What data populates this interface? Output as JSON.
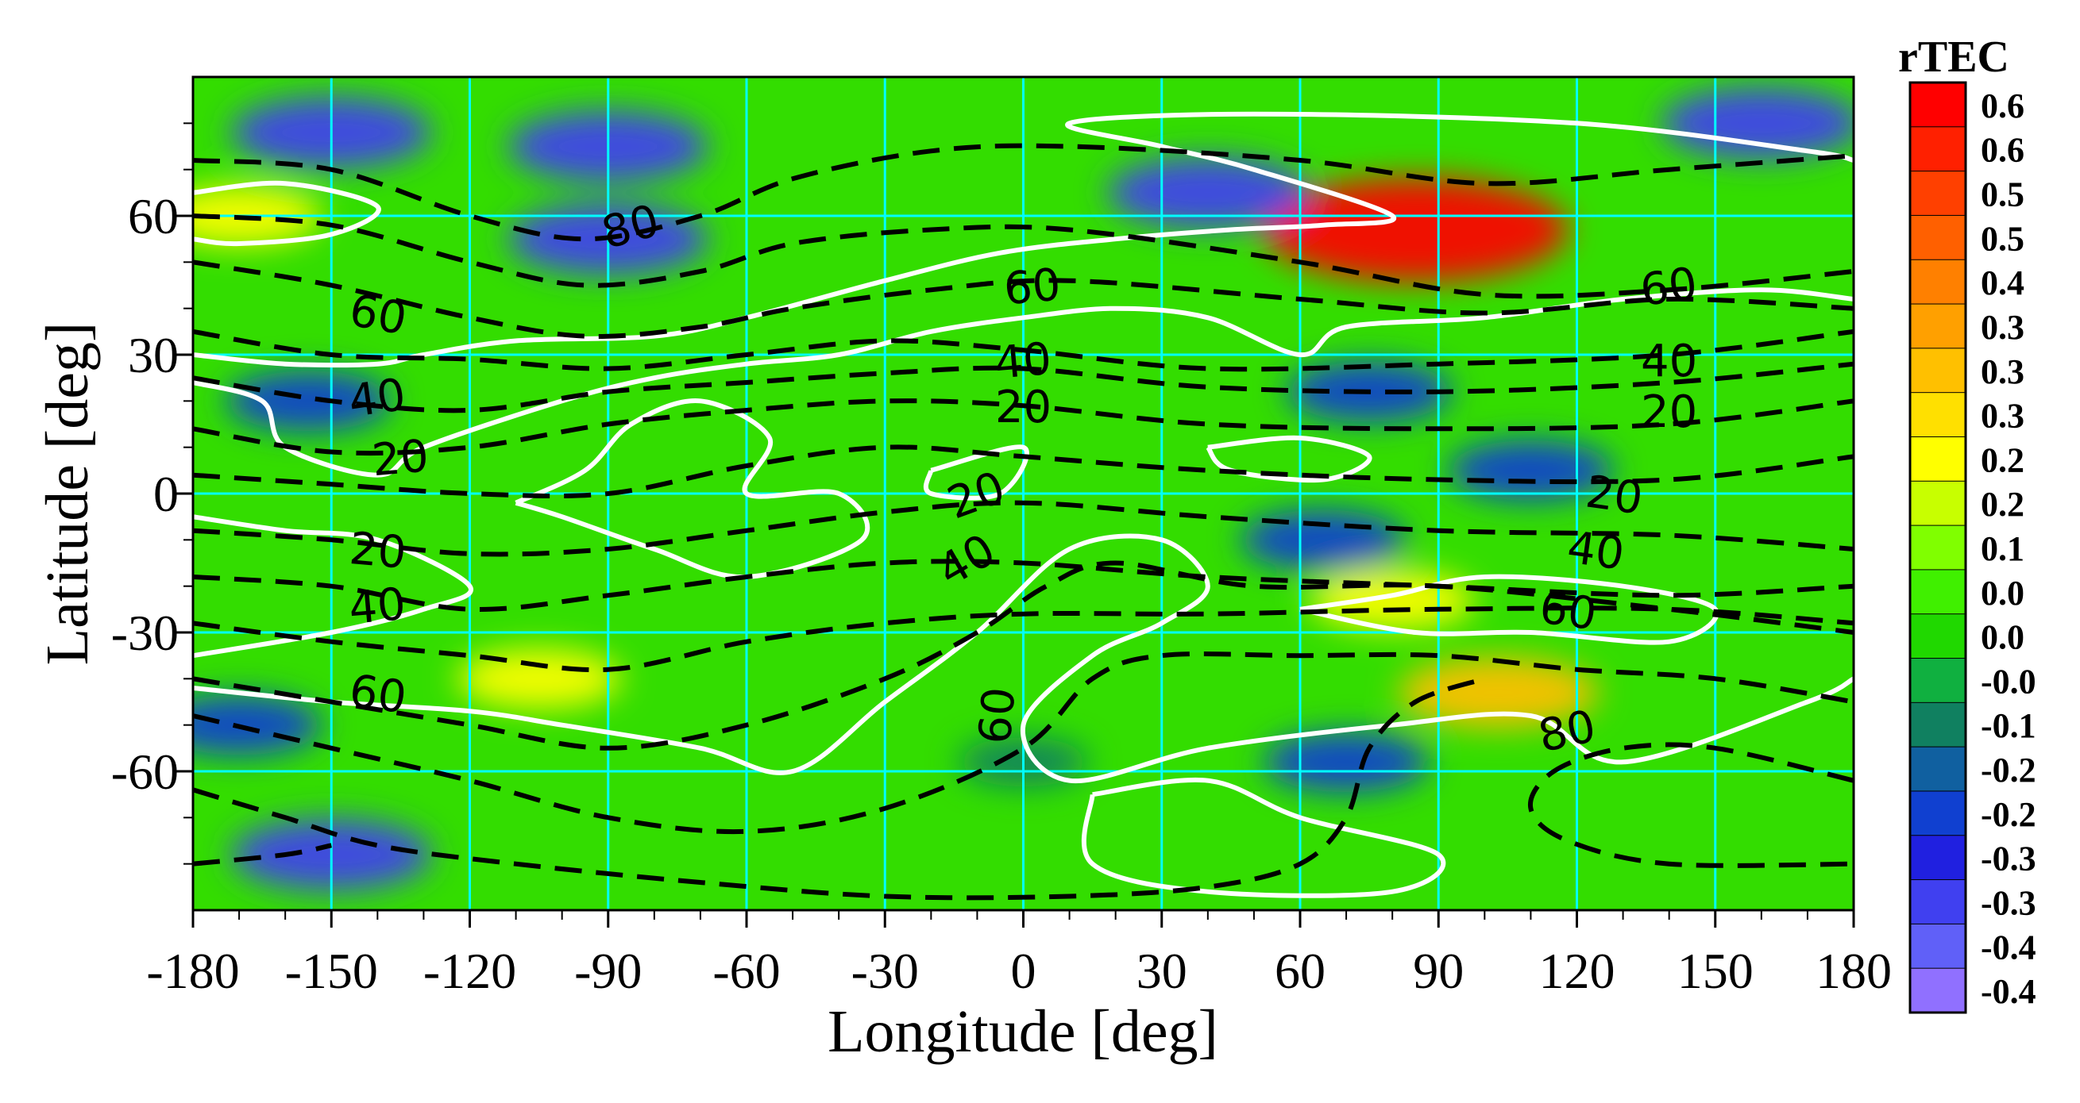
{
  "chart_data": {
    "type": "heatmap",
    "xlabel": "Longitude [deg]",
    "ylabel": "Latitude [deg]",
    "xlim": [
      -180,
      180
    ],
    "ylim": [
      -90,
      90
    ],
    "x_ticks": [
      "-180",
      "-150",
      "-120",
      "-90",
      "-60",
      "-30",
      "0",
      "30",
      "60",
      "90",
      "120",
      "150",
      "180"
    ],
    "y_ticks": [
      "60",
      "30",
      "0",
      "-30",
      "-60"
    ],
    "x_tick_values": [
      -180,
      -150,
      -120,
      -90,
      -60,
      -30,
      0,
      30,
      60,
      90,
      120,
      150,
      180
    ],
    "y_tick_values": [
      60,
      30,
      0,
      -30,
      -60
    ],
    "grid": true,
    "grid_color": "#00ffff",
    "colorbar": {
      "title": "rTEC",
      "labels": [
        "0.6",
        "0.6",
        "0.5",
        "0.5",
        "0.4",
        "0.3",
        "0.3",
        "0.3",
        "0.2",
        "0.2",
        "0.1",
        "0.0",
        "0.0",
        "-0.0",
        "-0.1",
        "-0.2",
        "-0.2",
        "-0.3",
        "-0.3",
        "-0.4",
        "-0.4"
      ],
      "colors": [
        "#ff0000",
        "#ff2000",
        "#ff4000",
        "#ff6000",
        "#ff8000",
        "#ffa000",
        "#ffc000",
        "#ffe000",
        "#ffff00",
        "#c8ff00",
        "#80ff00",
        "#40f000",
        "#20d800",
        "#10b040",
        "#108060",
        "#1060a0",
        "#1040d0",
        "#2020e0",
        "#4040f0",
        "#6060f8",
        "#9070ff"
      ]
    },
    "background_color": "#33dd00",
    "anomaly_regions": [
      {
        "lon": -170,
        "lat": 60,
        "value": 0.2
      },
      {
        "lon": 85,
        "lat": 57,
        "value": 0.6
      },
      {
        "lon": 103,
        "lat": -43,
        "value": 0.3
      },
      {
        "lon": 80,
        "lat": -23,
        "value": 0.2
      },
      {
        "lon": -105,
        "lat": -40,
        "value": 0.2
      },
      {
        "lon": -150,
        "lat": 78,
        "value": -0.3
      },
      {
        "lon": -90,
        "lat": 75,
        "value": -0.3
      },
      {
        "lon": -90,
        "lat": 55,
        "value": -0.3
      },
      {
        "lon": 40,
        "lat": 65,
        "value": -0.3
      },
      {
        "lon": 160,
        "lat": 80,
        "value": -0.3
      },
      {
        "lon": -150,
        "lat": -78,
        "value": -0.3
      },
      {
        "lon": 110,
        "lat": 5,
        "value": -0.2
      },
      {
        "lon": 65,
        "lat": -10,
        "value": -0.2
      },
      {
        "lon": -155,
        "lat": 20,
        "value": -0.2
      },
      {
        "lon": 75,
        "lat": 22,
        "value": -0.2
      },
      {
        "lon": 70,
        "lat": -58,
        "value": -0.2
      },
      {
        "lon": 0,
        "lat": -58,
        "value": -0.1
      },
      {
        "lon": -170,
        "lat": -50,
        "value": -0.2
      }
    ],
    "contour_labels": [
      {
        "text": "80",
        "lon": -85,
        "lat": 57,
        "angle": -15
      },
      {
        "text": "60",
        "lon": -140,
        "lat": 38,
        "angle": 10
      },
      {
        "text": "40",
        "lon": -140,
        "lat": 20,
        "angle": -8
      },
      {
        "text": "20",
        "lon": -135,
        "lat": 7,
        "angle": -5
      },
      {
        "text": "20",
        "lon": -140,
        "lat": -13,
        "angle": 5
      },
      {
        "text": "40",
        "lon": -140,
        "lat": -25,
        "angle": -5
      },
      {
        "text": "60",
        "lon": -140,
        "lat": -44,
        "angle": 8
      },
      {
        "text": "60",
        "lon": 2,
        "lat": 44,
        "angle": -5
      },
      {
        "text": "40",
        "lon": 0,
        "lat": 28,
        "angle": -5
      },
      {
        "text": "20",
        "lon": 0,
        "lat": 18,
        "angle": 0
      },
      {
        "text": "20",
        "lon": -10,
        "lat": -1,
        "angle": -20
      },
      {
        "text": "40",
        "lon": -12,
        "lat": -15,
        "angle": -30
      },
      {
        "text": "60",
        "lon": -5,
        "lat": -48,
        "angle": -85
      },
      {
        "text": "60",
        "lon": 140,
        "lat": 44,
        "angle": -8
      },
      {
        "text": "40",
        "lon": 140,
        "lat": 28,
        "angle": 0
      },
      {
        "text": "20",
        "lon": 140,
        "lat": 17,
        "angle": 0
      },
      {
        "text": "20",
        "lon": 128,
        "lat": -1,
        "angle": 8
      },
      {
        "text": "40",
        "lon": 124,
        "lat": -13,
        "angle": 8
      },
      {
        "text": "60",
        "lon": 118,
        "lat": -26,
        "angle": 8
      },
      {
        "text": "80",
        "lon": 118,
        "lat": -52,
        "angle": -12
      }
    ],
    "dashed_contours": [
      [
        [
          -180,
          72
        ],
        [
          -150,
          70
        ],
        [
          -120,
          60
        ],
        [
          -95,
          55
        ],
        [
          -70,
          60
        ],
        [
          -50,
          68
        ],
        [
          -20,
          74
        ],
        [
          10,
          75
        ],
        [
          60,
          72
        ],
        [
          100,
          67
        ],
        [
          140,
          70
        ],
        [
          180,
          73
        ]
      ],
      [
        [
          -180,
          60
        ],
        [
          -150,
          58
        ],
        [
          -120,
          50
        ],
        [
          -95,
          45
        ],
        [
          -70,
          48
        ],
        [
          -50,
          54
        ],
        [
          -20,
          57
        ],
        [
          10,
          57
        ],
        [
          60,
          50
        ],
        [
          100,
          43
        ],
        [
          140,
          44
        ],
        [
          180,
          48
        ]
      ],
      [
        [
          -180,
          50
        ],
        [
          -150,
          45
        ],
        [
          -120,
          38
        ],
        [
          -95,
          34
        ],
        [
          -70,
          36
        ],
        [
          -50,
          40
        ],
        [
          -20,
          44
        ],
        [
          10,
          46
        ],
        [
          60,
          42
        ],
        [
          100,
          39
        ],
        [
          140,
          42
        ],
        [
          180,
          40
        ]
      ],
      [
        [
          -180,
          35
        ],
        [
          -150,
          30
        ],
        [
          -120,
          29
        ],
        [
          -90,
          27
        ],
        [
          -60,
          30
        ],
        [
          -30,
          33
        ],
        [
          0,
          31
        ],
        [
          40,
          27
        ],
        [
          90,
          28
        ],
        [
          140,
          30
        ],
        [
          180,
          35
        ]
      ],
      [
        [
          -180,
          25
        ],
        [
          -150,
          20
        ],
        [
          -120,
          18
        ],
        [
          -90,
          22
        ],
        [
          -60,
          24
        ],
        [
          -30,
          26
        ],
        [
          0,
          27
        ],
        [
          40,
          23
        ],
        [
          90,
          22
        ],
        [
          140,
          24
        ],
        [
          180,
          28
        ]
      ],
      [
        [
          -180,
          14
        ],
        [
          -150,
          9
        ],
        [
          -120,
          10
        ],
        [
          -90,
          15
        ],
        [
          -60,
          18
        ],
        [
          -30,
          20
        ],
        [
          0,
          19
        ],
        [
          40,
          15
        ],
        [
          90,
          14
        ],
        [
          140,
          15
        ],
        [
          180,
          20
        ]
      ],
      [
        [
          -180,
          4
        ],
        [
          -150,
          2
        ],
        [
          -120,
          0
        ],
        [
          -90,
          0
        ],
        [
          -60,
          6
        ],
        [
          -30,
          10
        ],
        [
          0,
          8
        ],
        [
          40,
          5
        ],
        [
          90,
          3
        ],
        [
          140,
          3
        ],
        [
          180,
          8
        ]
      ],
      [
        [
          -180,
          -8
        ],
        [
          -150,
          -10
        ],
        [
          -120,
          -13
        ],
        [
          -90,
          -12
        ],
        [
          -60,
          -8
        ],
        [
          -30,
          -4
        ],
        [
          0,
          -2
        ],
        [
          40,
          -5
        ],
        [
          90,
          -8
        ],
        [
          140,
          -9
        ],
        [
          180,
          -12
        ]
      ],
      [
        [
          -180,
          -18
        ],
        [
          -150,
          -20
        ],
        [
          -120,
          -25
        ],
        [
          -90,
          -22
        ],
        [
          -60,
          -18
        ],
        [
          -30,
          -15
        ],
        [
          0,
          -15
        ],
        [
          40,
          -18
        ],
        [
          90,
          -20
        ],
        [
          140,
          -22
        ],
        [
          180,
          -20
        ]
      ],
      [
        [
          -180,
          -28
        ],
        [
          -150,
          -32
        ],
        [
          -120,
          -35
        ],
        [
          -90,
          -38
        ],
        [
          -60,
          -32
        ],
        [
          -30,
          -28
        ],
        [
          0,
          -26
        ],
        [
          40,
          -26
        ],
        [
          90,
          -25
        ],
        [
          140,
          -25
        ],
        [
          180,
          -28
        ]
      ],
      [
        [
          -180,
          -40
        ],
        [
          -150,
          -45
        ],
        [
          -120,
          -50
        ],
        [
          -90,
          -55
        ],
        [
          -60,
          -50
        ],
        [
          -30,
          -40
        ],
        [
          -10,
          -30
        ],
        [
          5,
          -20
        ],
        [
          20,
          -15
        ],
        [
          50,
          -20
        ],
        [
          90,
          -20
        ],
        [
          140,
          -25
        ],
        [
          180,
          -30
        ]
      ],
      [
        [
          -180,
          -48
        ],
        [
          -150,
          -55
        ],
        [
          -120,
          -62
        ],
        [
          -90,
          -70
        ],
        [
          -60,
          -73
        ],
        [
          -30,
          -68
        ],
        [
          0,
          -55
        ],
        [
          15,
          -40
        ],
        [
          30,
          -35
        ],
        [
          60,
          -35
        ],
        [
          90,
          -35
        ],
        [
          120,
          -38
        ],
        [
          150,
          -40
        ],
        [
          180,
          -45
        ]
      ],
      [
        [
          -180,
          -64
        ],
        [
          -160,
          -70
        ],
        [
          -140,
          -76
        ],
        [
          -110,
          -80
        ],
        [
          -70,
          -84
        ],
        [
          -30,
          -87
        ],
        [
          10,
          -87
        ],
        [
          40,
          -85
        ],
        [
          60,
          -80
        ],
        [
          70,
          -70
        ],
        [
          75,
          -55
        ],
        [
          85,
          -45
        ],
        [
          100,
          -40
        ]
      ],
      [
        [
          -180,
          -80
        ],
        [
          -160,
          -78
        ],
        [
          -150,
          -76
        ]
      ],
      [
        [
          180,
          -62
        ],
        [
          150,
          -55
        ],
        [
          130,
          -55
        ],
        [
          115,
          -60
        ],
        [
          110,
          -68
        ],
        [
          118,
          -75
        ],
        [
          140,
          -80
        ],
        [
          180,
          -80
        ]
      ]
    ],
    "white_contours": [
      [
        [
          -180,
          65
        ],
        [
          -160,
          67
        ],
        [
          -140,
          62
        ],
        [
          -150,
          56
        ],
        [
          -170,
          54
        ],
        [
          -180,
          55
        ]
      ],
      [
        [
          -180,
          30
        ],
        [
          -160,
          28
        ],
        [
          -140,
          28
        ],
        [
          -130,
          30
        ],
        [
          -110,
          33
        ],
        [
          -80,
          34
        ],
        [
          -60,
          38
        ],
        [
          -30,
          46
        ],
        [
          -5,
          52
        ],
        [
          20,
          55
        ],
        [
          45,
          57
        ],
        [
          65,
          58
        ],
        [
          80,
          60
        ],
        [
          50,
          70
        ],
        [
          30,
          75
        ],
        [
          10,
          80
        ],
        [
          50,
          82
        ],
        [
          120,
          80
        ],
        [
          170,
          74
        ],
        [
          180,
          72
        ]
      ],
      [
        [
          -180,
          24
        ],
        [
          -165,
          20
        ],
        [
          -160,
          10
        ],
        [
          -140,
          4
        ],
        [
          -130,
          10
        ],
        [
          -100,
          20
        ],
        [
          -80,
          25
        ],
        [
          -60,
          28
        ],
        [
          -40,
          30
        ],
        [
          -20,
          35
        ],
        [
          0,
          38
        ],
        [
          20,
          40
        ],
        [
          40,
          38
        ],
        [
          60,
          30
        ],
        [
          70,
          36
        ],
        [
          100,
          38
        ],
        [
          130,
          42
        ],
        [
          160,
          44
        ],
        [
          180,
          42
        ]
      ],
      [
        [
          -110,
          -2
        ],
        [
          -95,
          5
        ],
        [
          -85,
          15
        ],
        [
          -70,
          20
        ],
        [
          -55,
          12
        ],
        [
          -60,
          0
        ],
        [
          -40,
          0
        ],
        [
          -35,
          -10
        ],
        [
          -60,
          -18
        ],
        [
          -80,
          -12
        ],
        [
          -100,
          -5
        ],
        [
          -110,
          -2
        ]
      ],
      [
        [
          -20,
          5
        ],
        [
          0,
          10
        ],
        [
          -5,
          0
        ],
        [
          -20,
          0
        ],
        [
          -20,
          5
        ]
      ],
      [
        [
          40,
          10
        ],
        [
          60,
          12
        ],
        [
          75,
          8
        ],
        [
          65,
          3
        ],
        [
          45,
          5
        ],
        [
          40,
          10
        ]
      ],
      [
        [
          -180,
          -5
        ],
        [
          -160,
          -8
        ],
        [
          -140,
          -10
        ],
        [
          -120,
          -20
        ],
        [
          -130,
          -25
        ],
        [
          -150,
          -30
        ],
        [
          -180,
          -35
        ]
      ],
      [
        [
          -180,
          -42
        ],
        [
          -150,
          -45
        ],
        [
          -120,
          -47
        ],
        [
          -100,
          -50
        ],
        [
          -70,
          -55
        ],
        [
          -50,
          -60
        ],
        [
          -30,
          -45
        ],
        [
          -10,
          -30
        ],
        [
          10,
          -12
        ],
        [
          30,
          -10
        ],
        [
          40,
          -20
        ],
        [
          30,
          -28
        ],
        [
          15,
          -35
        ],
        [
          0,
          -50
        ],
        [
          10,
          -62
        ],
        [
          40,
          -55
        ],
        [
          80,
          -50
        ],
        [
          110,
          -48
        ],
        [
          130,
          -58
        ],
        [
          170,
          -45
        ],
        [
          180,
          -40
        ]
      ],
      [
        [
          60,
          -25
        ],
        [
          80,
          -22
        ],
        [
          100,
          -18
        ],
        [
          130,
          -20
        ],
        [
          150,
          -25
        ],
        [
          140,
          -32
        ],
        [
          110,
          -30
        ],
        [
          85,
          -30
        ],
        [
          60,
          -25
        ]
      ],
      [
        [
          15,
          -65
        ],
        [
          40,
          -62
        ],
        [
          60,
          -70
        ],
        [
          90,
          -78
        ],
        [
          80,
          -86
        ],
        [
          40,
          -86
        ],
        [
          15,
          -80
        ],
        [
          15,
          -65
        ]
      ]
    ]
  }
}
